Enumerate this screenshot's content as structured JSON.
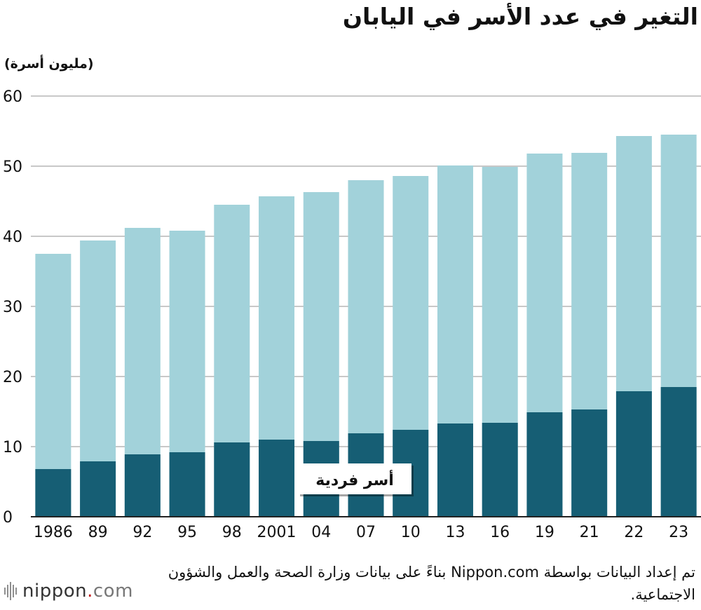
{
  "title": "التغير في عدد الأسر في اليابان",
  "unit_label": "(مليون أسرة)",
  "source": "تم إعداد البيانات بواسطة Nippon.com بناءً على بيانات وزارة الصحة والعمل والشؤون الاجتماعية.",
  "logo": {
    "name": "nippon",
    "dot": ".",
    "tld": "com"
  },
  "chart_data": {
    "type": "bar",
    "stacked": false,
    "categories": [
      "1986",
      "89",
      "92",
      "95",
      "98",
      "2001",
      "04",
      "07",
      "10",
      "13",
      "16",
      "19",
      "21",
      "22",
      "23"
    ],
    "series": [
      {
        "name": "",
        "color": "#a2d2da",
        "values": [
          37.5,
          39.4,
          41.2,
          40.8,
          44.5,
          45.7,
          46.3,
          48.0,
          48.6,
          50.1,
          49.9,
          51.8,
          51.9,
          54.3,
          54.5
        ]
      },
      {
        "name": "أسر فردية",
        "color": "#165e74",
        "values": [
          6.8,
          7.9,
          8.9,
          9.2,
          10.6,
          11.0,
          10.8,
          11.9,
          12.4,
          13.3,
          13.4,
          14.9,
          15.3,
          17.9,
          18.5
        ]
      }
    ],
    "yticks": [
      "0",
      "10",
      "20",
      "30",
      "40",
      "50",
      "60"
    ],
    "ylim": [
      0,
      60
    ],
    "grid": true,
    "grid_color": "#c8c8c8"
  }
}
